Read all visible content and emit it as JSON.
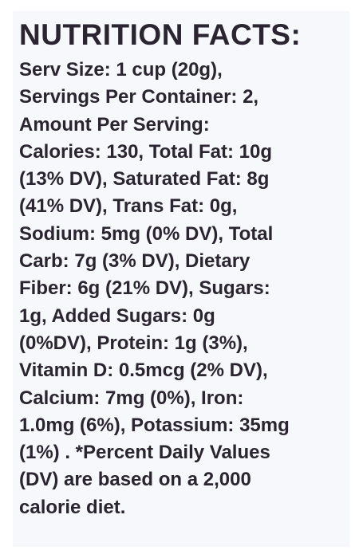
{
  "panel": {
    "title": "NUTRITION FACTS:",
    "lines": [
      "Serv Size: 1 cup (20g),",
      "Servings Per Container: 2,",
      "Amount Per Serving:",
      "Calories: 130, Total Fat: 10g",
      "(13% DV), Saturated Fat: 8g",
      "(41% DV), Trans Fat: 0g,",
      "Sodium: 5mg (0% DV), Total",
      "Carb: 7g (3% DV), Dietary",
      "Fiber: 6g (21% DV), Sugars:",
      "1g, Added Sugars: 0g",
      "(0%DV), Protein: 1g (3%),",
      "Vitamin D: 0.5mcg (2% DV),",
      "Calcium: 7mg (0%), Iron:",
      "1.0mg (6%), Potassium: 35mg",
      "(1%) . *Percent Daily Values",
      "(DV) are based on a 2,000",
      "calorie diet."
    ]
  }
}
